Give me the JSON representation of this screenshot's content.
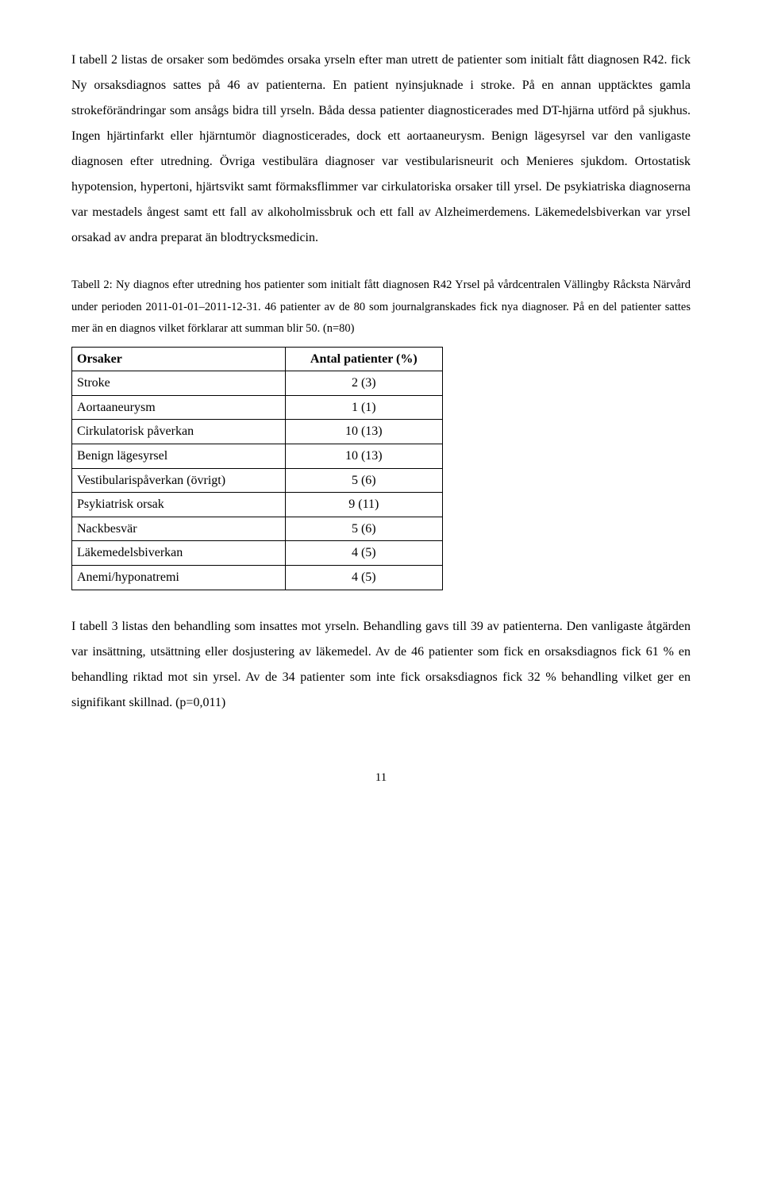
{
  "paragraph1": "I tabell 2 listas de orsaker som bedömdes orsaka yrseln efter man utrett de patienter som initialt fått diagnosen R42. fick Ny orsaksdiagnos sattes på 46 av patienterna. En patient nyinsjuknade i stroke. På en annan upptäcktes gamla strokeförändringar som ansågs bidra till yrseln. Båda dessa patienter diagnosticerades med DT-hjärna utförd på sjukhus. Ingen hjärtinfarkt eller hjärntumör diagnosticerades, dock ett aortaaneurysm. Benign lägesyrsel var den vanligaste diagnosen efter utredning. Övriga vestibulära diagnoser var vestibularisneurit och Menieres sjukdom. Ortostatisk hypotension, hypertoni, hjärtsvikt samt förmaksflimmer var cirkulatoriska orsaker till yrsel. De psykiatriska diagnoserna var mestadels ångest samt ett fall av alkoholmissbruk och ett fall av Alzheimerdemens. Läkemedelsbiverkan var yrsel orsakad av andra preparat än blodtrycksmedicin.",
  "caption": "Tabell 2: Ny diagnos efter utredning hos patienter som initialt fått diagnosen R42 Yrsel på vårdcentralen Vällingby Råcksta Närvård under perioden 2011-01-01–2011-12-31. 46 patienter av de 80 som journalgranskades fick nya diagnoser. På en del patienter sattes mer än en diagnos vilket förklarar att summan blir 50. (n=80)",
  "table": {
    "header": {
      "col1": "Orsaker",
      "col2": "Antal patienter (%)"
    },
    "rows": [
      {
        "label": "Stroke",
        "value": "2 (3)"
      },
      {
        "label": "Aortaaneurysm",
        "value": "1 (1)"
      },
      {
        "label": "Cirkulatorisk påverkan",
        "value": "10 (13)"
      },
      {
        "label": "Benign lägesyrsel",
        "value": "10 (13)"
      },
      {
        "label": "Vestibularispåverkan (övrigt)",
        "value": "5 (6)"
      },
      {
        "label": "Psykiatrisk orsak",
        "value": "9 (11)"
      },
      {
        "label": "Nackbesvär",
        "value": "5 (6)"
      },
      {
        "label": "Läkemedelsbiverkan",
        "value": "4 (5)"
      },
      {
        "label": "Anemi/hyponatremi",
        "value": "4 (5)"
      }
    ]
  },
  "paragraph2": "I tabell 3 listas den behandling som insattes mot yrseln. Behandling gavs till 39 av patienterna. Den vanligaste åtgärden var insättning, utsättning eller dosjustering av läkemedel. Av de 46 patienter som fick en orsaksdiagnos fick 61 % en behandling riktad mot sin yrsel. Av de 34 patienter som inte fick orsaksdiagnos fick 32 % behandling vilket ger en signifikant skillnad. (p=0,011)",
  "pageNumber": "11"
}
